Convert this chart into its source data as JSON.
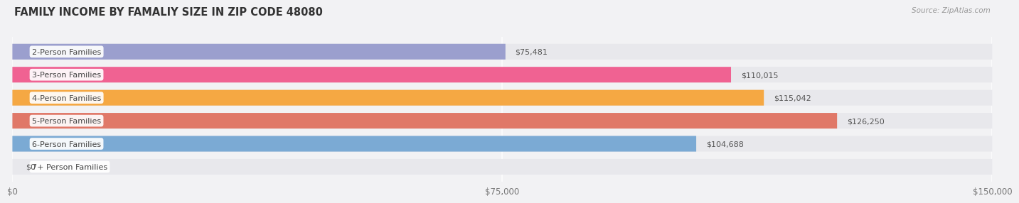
{
  "title": "FAMILY INCOME BY FAMALIY SIZE IN ZIP CODE 48080",
  "source": "Source: ZipAtlas.com",
  "categories": [
    "2-Person Families",
    "3-Person Families",
    "4-Person Families",
    "5-Person Families",
    "6-Person Families",
    "7+ Person Families"
  ],
  "values": [
    75481,
    110015,
    115042,
    126250,
    104688,
    0
  ],
  "bar_colors": [
    "#9b9fce",
    "#f06292",
    "#f5a843",
    "#e07868",
    "#7baad4",
    "#c9b8d8"
  ],
  "value_labels": [
    "$75,481",
    "$110,015",
    "$115,042",
    "$126,250",
    "$104,688",
    "$0"
  ],
  "xlim": [
    0,
    150000
  ],
  "xticks": [
    0,
    75000,
    150000
  ],
  "xtick_labels": [
    "$0",
    "$75,000",
    "$150,000"
  ],
  "bar_height": 0.68,
  "track_color": "#e8e8ec",
  "background_color": "#f2f2f4",
  "title_fontsize": 10.5,
  "label_fontsize": 8.0,
  "value_fontsize": 8.0,
  "small_bar_value": 5000
}
